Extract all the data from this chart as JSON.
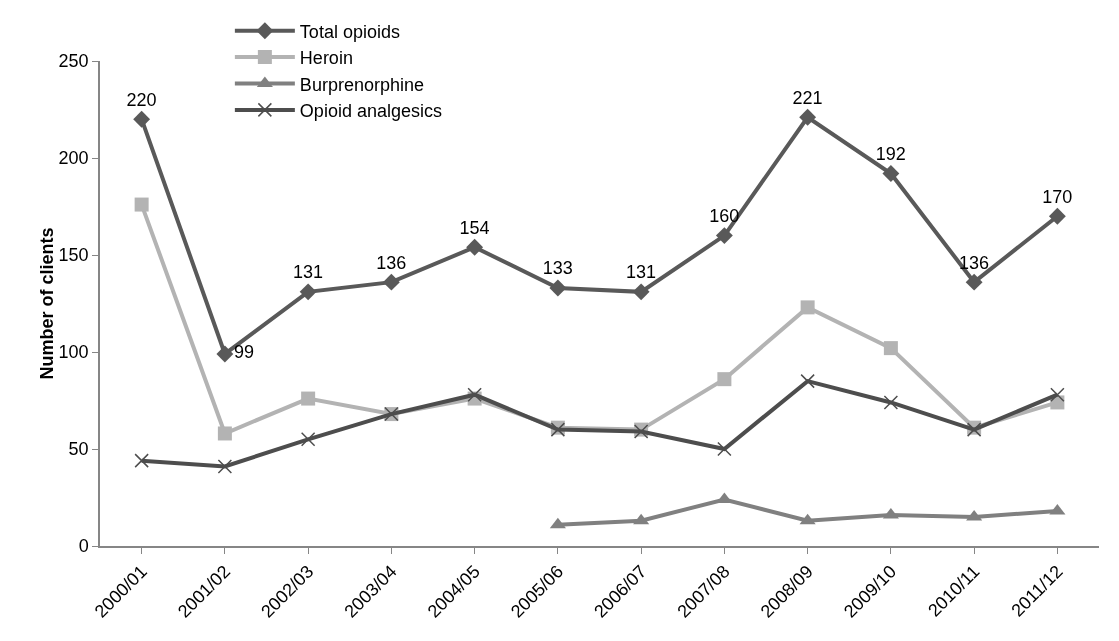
{
  "chart_data": {
    "type": "line",
    "ylabel": "Number of clients",
    "categories": [
      "2000/01",
      "2001/02",
      "2002/03",
      "2003/04",
      "2004/05",
      "2005/06",
      "2006/07",
      "2007/08",
      "2008/09",
      "2009/10",
      "2010/11",
      "2011/12"
    ],
    "series": [
      {
        "name": "Total opioids",
        "color": "#595959",
        "marker": "diamond",
        "values": [
          220,
          99,
          131,
          136,
          154,
          133,
          131,
          160,
          221,
          192,
          136,
          170
        ],
        "value_labels": [
          "220",
          "99",
          "131",
          "136",
          "154",
          "133",
          "131",
          "160",
          "221",
          "192",
          "136",
          "170"
        ]
      },
      {
        "name": "Heroin",
        "color": "#b3b3b3",
        "marker": "square",
        "values": [
          176,
          58,
          76,
          68,
          76,
          61,
          60,
          86,
          123,
          102,
          61,
          74
        ]
      },
      {
        "name": "Burprenorphine",
        "color": "#808080",
        "marker": "triangle",
        "values": [
          null,
          null,
          null,
          null,
          null,
          11,
          13,
          24,
          13,
          16,
          15,
          18
        ]
      },
      {
        "name": "Opioid analgesics",
        "color": "#4d4d4d",
        "marker": "cross",
        "values": [
          44,
          41,
          55,
          68,
          78,
          60,
          59,
          50,
          85,
          74,
          60,
          78
        ]
      }
    ],
    "ylim": [
      0,
      250
    ],
    "yticks": [
      0,
      50,
      100,
      150,
      200,
      250
    ],
    "grid": false,
    "legend": "top"
  }
}
